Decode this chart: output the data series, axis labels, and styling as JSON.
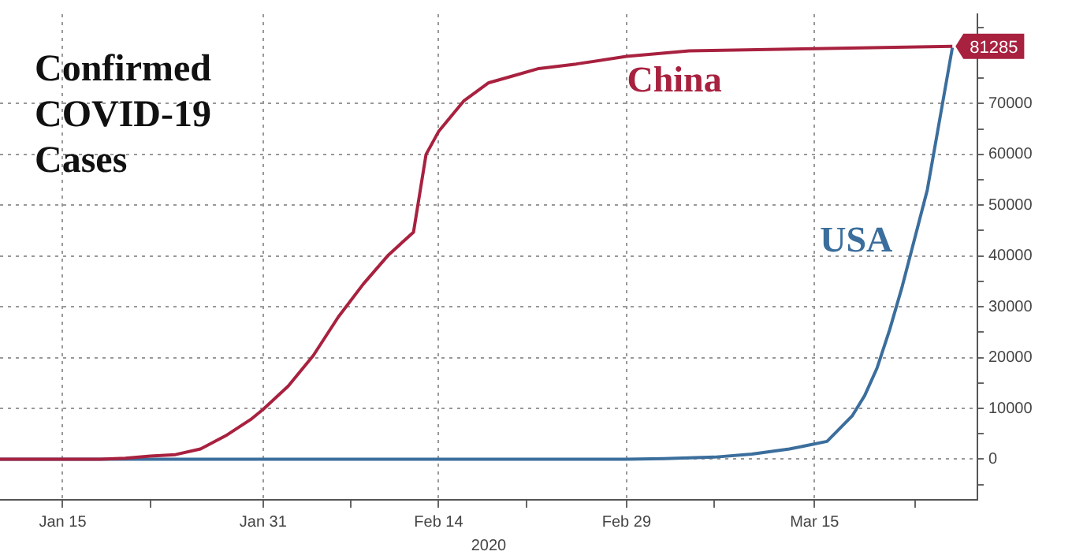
{
  "chart_data": {
    "type": "line",
    "title": "Confirmed COVID-19 Cases",
    "xlabel": "2020",
    "xlim": [
      "2020-01-10",
      "2020-03-28"
    ],
    "xticks": [
      {
        "value": "2020-01-15",
        "label": "Jan 15"
      },
      {
        "value": "2020-01-22",
        "label": null
      },
      {
        "value": "2020-01-31",
        "label": "Jan 31"
      },
      {
        "value": "2020-02-07",
        "label": null
      },
      {
        "value": "2020-02-14",
        "label": "Feb 14"
      },
      {
        "value": "2020-02-21",
        "label": null
      },
      {
        "value": "2020-02-29",
        "label": "Feb 29"
      },
      {
        "value": "2020-03-07",
        "label": null
      },
      {
        "value": "2020-03-15",
        "label": "Mar 15"
      },
      {
        "value": "2020-03-23",
        "label": null
      }
    ],
    "ylim": [
      -8000,
      87600
    ],
    "yticks": [
      {
        "value": -5000,
        "label": null
      },
      0,
      {
        "value": 5000,
        "label": null
      },
      10000,
      {
        "value": 15000,
        "label": null
      },
      20000,
      {
        "value": 25000,
        "label": null
      },
      30000,
      {
        "value": 35000,
        "label": null
      },
      40000,
      {
        "value": 45000,
        "label": null
      },
      50000,
      {
        "value": 55000,
        "label": null
      },
      60000,
      {
        "value": 65000,
        "label": null
      },
      70000,
      {
        "value": 75000,
        "label": null
      },
      {
        "value": 80000,
        "label": null
      },
      {
        "value": 85000,
        "label": null
      }
    ],
    "grid": true,
    "legend": false,
    "marker": "none",
    "line_style": "solid",
    "series": [
      {
        "name": "China",
        "color": "#a8213f",
        "x": [
          "2020-01-10",
          "2020-01-18",
          "2020-01-20",
          "2020-01-22",
          "2020-01-24",
          "2020-01-26",
          "2020-01-28",
          "2020-01-30",
          "2020-01-31",
          "2020-02-02",
          "2020-02-04",
          "2020-02-06",
          "2020-02-08",
          "2020-02-10",
          "2020-02-12",
          "2020-02-13",
          "2020-02-14",
          "2020-02-16",
          "2020-02-18",
          "2020-02-20",
          "2020-02-22",
          "2020-02-25",
          "2020-02-29",
          "2020-03-05",
          "2020-03-15",
          "2020-03-26"
        ],
        "values": [
          0,
          0,
          200,
          600,
          900,
          2000,
          4600,
          7800,
          9800,
          14400,
          20400,
          28000,
          34500,
          40200,
          44700,
          60000,
          64500,
          70500,
          74100,
          75500,
          76900,
          77800,
          79300,
          80400,
          80800,
          81285
        ],
        "value_labels": [
          null,
          null,
          null,
          null,
          null,
          null,
          null,
          null,
          null,
          null,
          null,
          null,
          null,
          null,
          null,
          null,
          null,
          null,
          null,
          null,
          null,
          null,
          null,
          null,
          null,
          "81285"
        ]
      },
      {
        "name": "USA",
        "color": "#3b6e9c",
        "x": [
          "2020-01-10",
          "2020-02-29",
          "2020-03-03",
          "2020-03-07",
          "2020-03-10",
          "2020-03-13",
          "2020-03-16",
          "2020-03-18",
          "2020-03-19",
          "2020-03-20",
          "2020-03-21",
          "2020-03-22",
          "2020-03-23",
          "2020-03-24",
          "2020-03-25",
          "2020-03-26"
        ],
        "values": [
          0,
          0,
          100,
          400,
          1000,
          2000,
          3500,
          8500,
          12500,
          18000,
          25500,
          34000,
          43500,
          53000,
          67000,
          81000
        ]
      }
    ]
  }
}
